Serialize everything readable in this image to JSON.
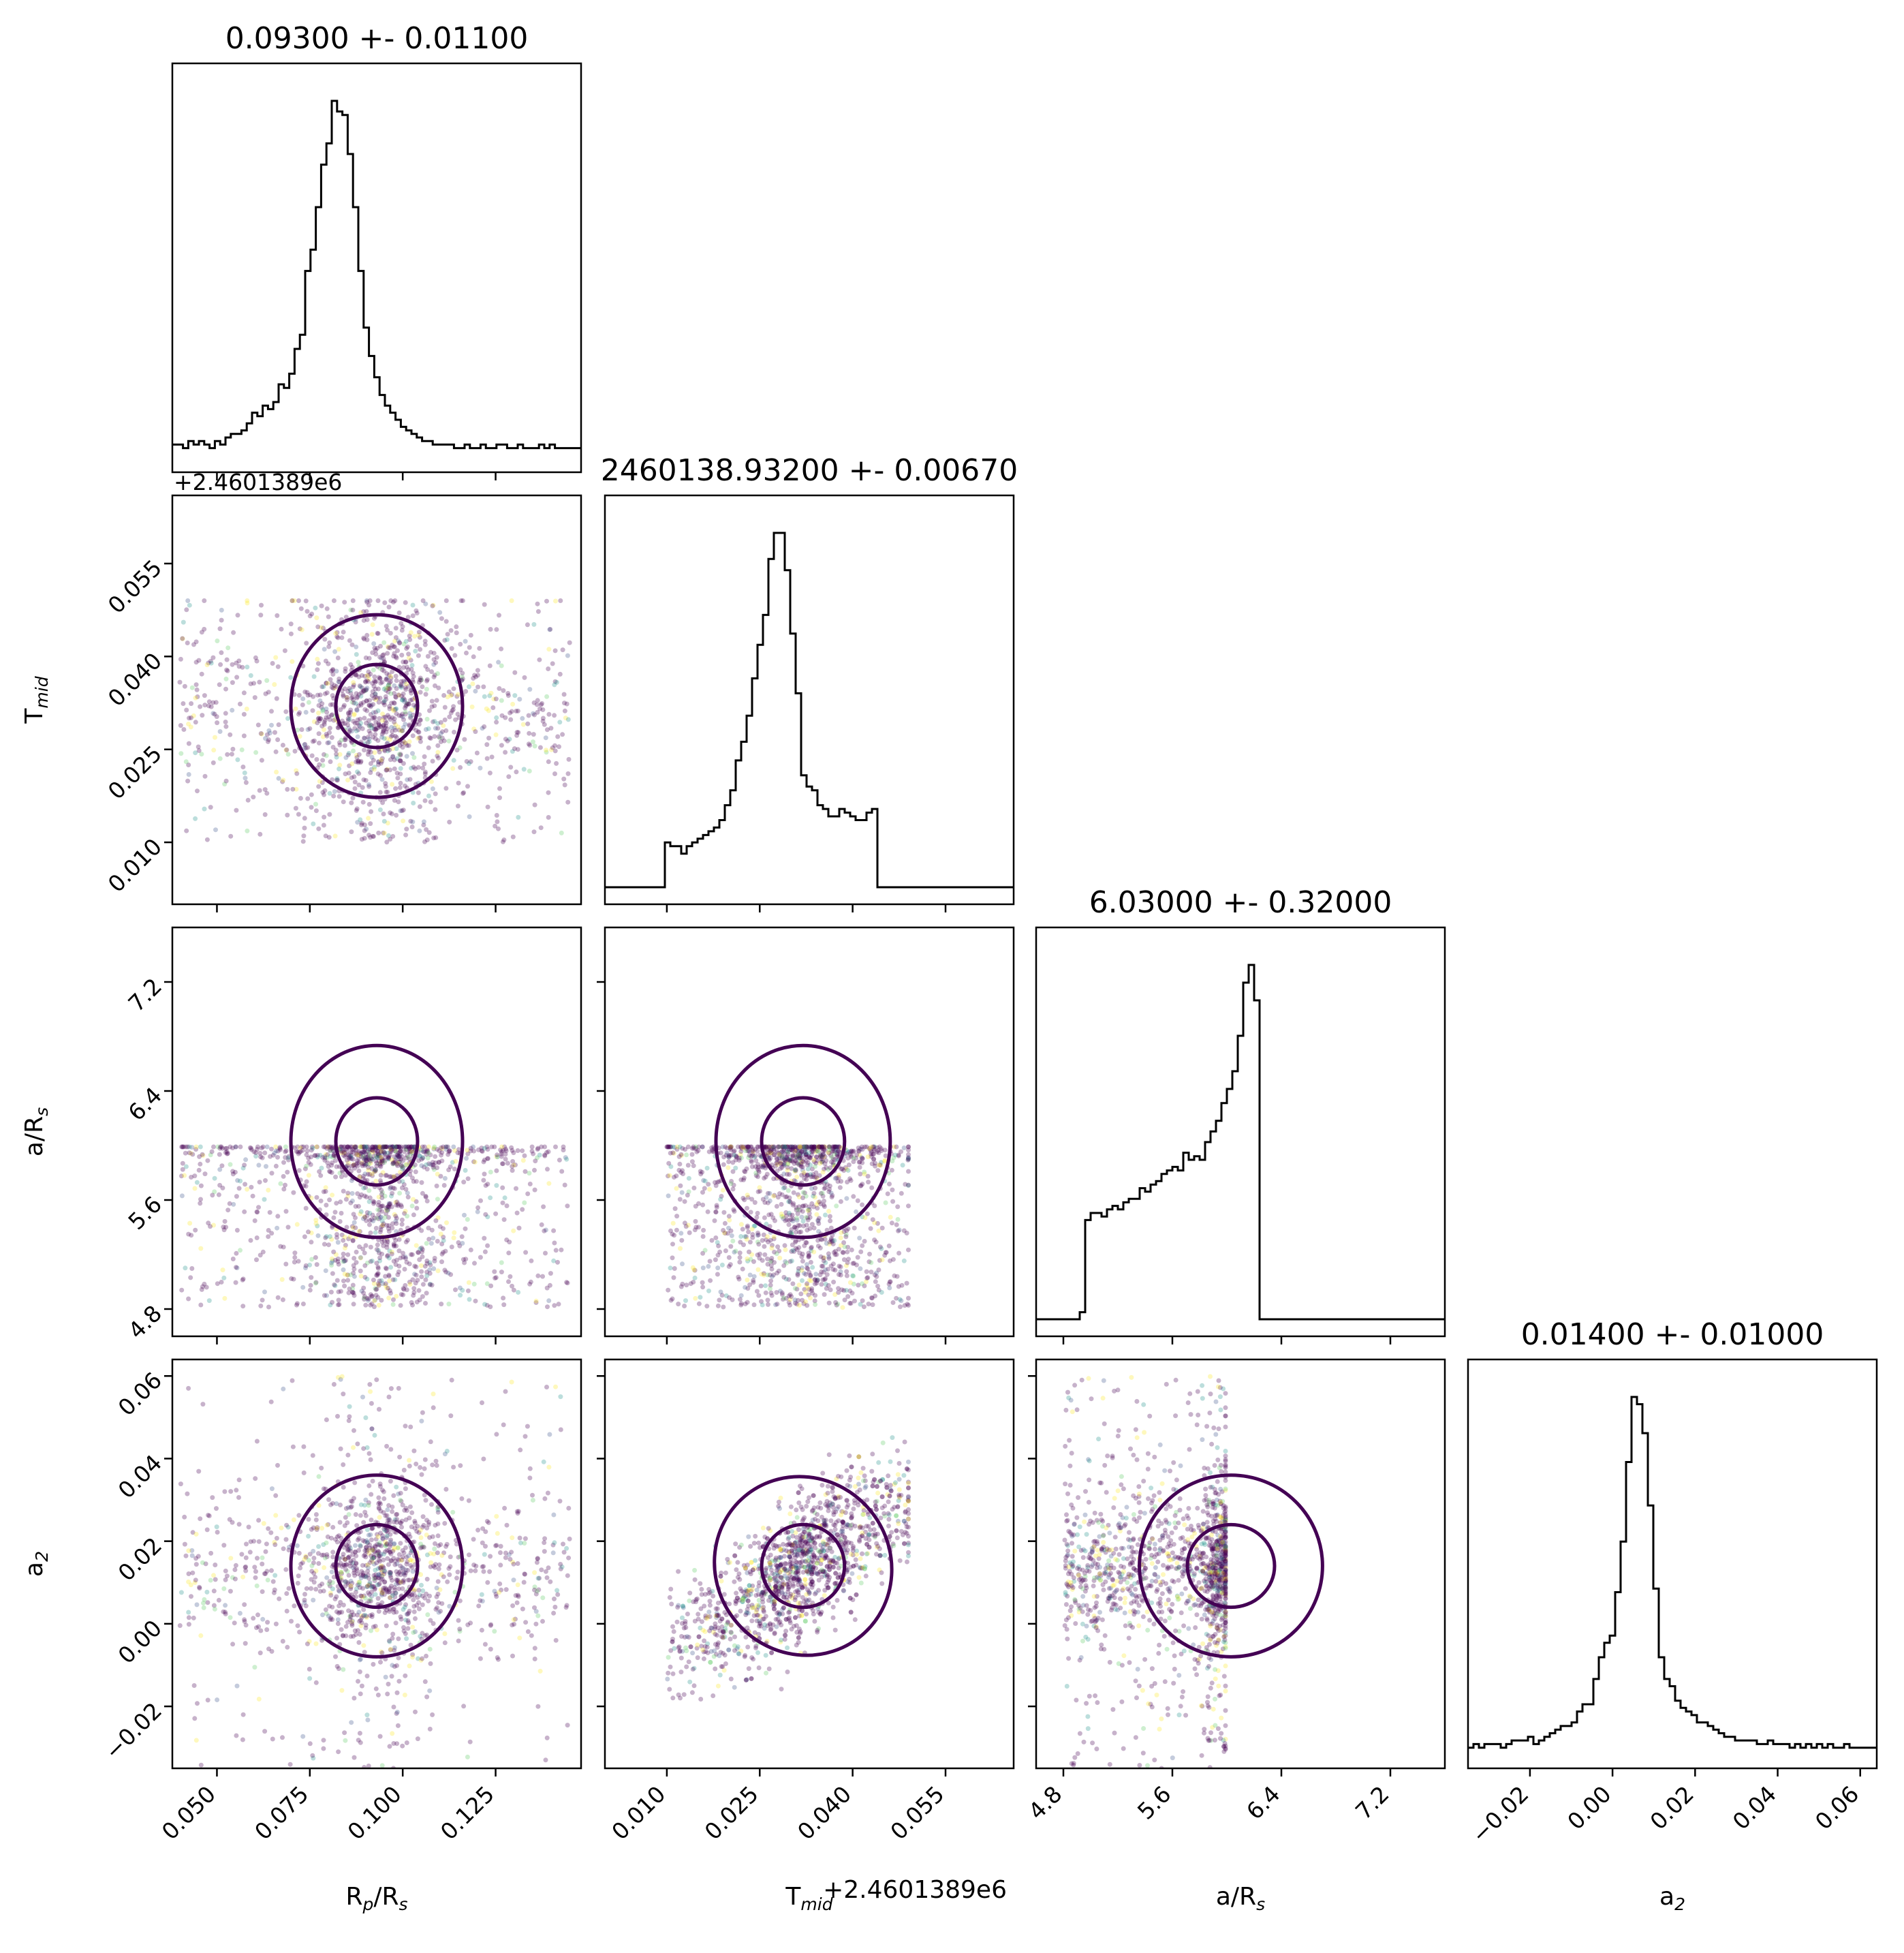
{
  "chart_data": {
    "type": "scatter",
    "subtype": "corner-plot",
    "parameters": [
      {
        "key": "rp",
        "label": "R",
        "sub": "p",
        "label_tail": "/R",
        "sub2": "s",
        "range": [
          0.038,
          0.148
        ],
        "ticks": [
          0.05,
          0.075,
          0.1,
          0.125
        ],
        "tick_labels": [
          "0.050",
          "0.075",
          "0.100",
          "0.125"
        ],
        "title": "0.09300 +- 0.01100",
        "median": 0.093,
        "sigma": 0.011,
        "offset": ""
      },
      {
        "key": "tmid",
        "label": "T",
        "sub": "mid",
        "label_tail": "",
        "sub2": "",
        "range": [
          0.0,
          0.066
        ],
        "ticks": [
          0.01,
          0.025,
          0.04,
          0.055
        ],
        "tick_labels": [
          "0.010",
          "0.025",
          "0.040",
          "0.055"
        ],
        "title": "2460138.93200 +- 0.00670",
        "median": 0.032,
        "sigma": 0.0067,
        "offset": "+2.4601389e6"
      },
      {
        "key": "ars",
        "label": "a/R",
        "sub": "s",
        "label_tail": "",
        "sub2": "",
        "range": [
          4.6,
          7.6
        ],
        "ticks": [
          4.8,
          5.6,
          6.4,
          7.2
        ],
        "tick_labels": [
          "4.8",
          "5.6",
          "6.4",
          "7.2"
        ],
        "title": "6.03000 +- 0.32000",
        "median": 6.03,
        "sigma": 0.32,
        "offset": ""
      },
      {
        "key": "a2",
        "label": "a",
        "sub": "2",
        "label_tail": "",
        "sub2": "",
        "range": [
          -0.035,
          0.064
        ],
        "ticks": [
          -0.02,
          0.0,
          0.02,
          0.04,
          0.06
        ],
        "tick_labels": [
          "−0.02",
          "0.00",
          "0.02",
          "0.04",
          "0.06"
        ],
        "title": "0.01400 +- 0.01000",
        "median": 0.014,
        "sigma": 0.01,
        "offset": ""
      }
    ],
    "histograms": {
      "rp": {
        "bin_start": 0.038,
        "bin_width": 0.00143,
        "counts": [
          3,
          3,
          2,
          4,
          3,
          4,
          3,
          2,
          4,
          3,
          5,
          6,
          6,
          7,
          9,
          12,
          11,
          14,
          13,
          15,
          20,
          19,
          23,
          30,
          34,
          52,
          58,
          70,
          82,
          88,
          100,
          97,
          96,
          85,
          70,
          52,
          36,
          28,
          22,
          17,
          14,
          12,
          10,
          8,
          7,
          6,
          5,
          4,
          4,
          3,
          3,
          3,
          3,
          2,
          2,
          3,
          2,
          2,
          3,
          2,
          2,
          3,
          3,
          2,
          2,
          3,
          2,
          2,
          2,
          3,
          2,
          3,
          2,
          2,
          2,
          2,
          2
        ]
      },
      "tmid": {
        "bin_start": 0.0,
        "bin_width": 0.00088,
        "counts": [
          0,
          0,
          0,
          0,
          0,
          0,
          0,
          0,
          0,
          0,
          0,
          12,
          11,
          11,
          9,
          11,
          12,
          13,
          14,
          15,
          16,
          18,
          22,
          26,
          34,
          39,
          46,
          56,
          65,
          73,
          88,
          95,
          95,
          85,
          68,
          52,
          30,
          27,
          26,
          22,
          21,
          19,
          19,
          21,
          20,
          19,
          18,
          18,
          20,
          21,
          0,
          0,
          0,
          0,
          0,
          0,
          0,
          0,
          0,
          0,
          0,
          0,
          0,
          0,
          0,
          0,
          0,
          0,
          0,
          0,
          0,
          0,
          0,
          0,
          0
        ]
      },
      "ars": {
        "bin_start": 4.6,
        "bin_width": 0.04,
        "counts": [
          0,
          0,
          0,
          0,
          0,
          0,
          0,
          0,
          2,
          28,
          30,
          30,
          29,
          31,
          32,
          31,
          33,
          34,
          34,
          37,
          36,
          38,
          39,
          41,
          42,
          43,
          42,
          47,
          45,
          46,
          45,
          50,
          53,
          56,
          61,
          65,
          70,
          80,
          95,
          100,
          90,
          0,
          0,
          0,
          0,
          0,
          0,
          0,
          0,
          0,
          0,
          0,
          0,
          0,
          0,
          0,
          0,
          0,
          0,
          0,
          0,
          0,
          0,
          0,
          0,
          0,
          0,
          0,
          0,
          0,
          0,
          0,
          0,
          0,
          0
        ]
      },
      "a2": {
        "bin_start": -0.035,
        "bin_width": 0.00132,
        "counts": [
          1,
          2,
          1,
          2,
          2,
          2,
          1,
          2,
          3,
          3,
          3,
          4,
          2,
          3,
          4,
          5,
          6,
          7,
          7,
          8,
          11,
          13,
          13,
          20,
          26,
          30,
          32,
          44,
          58,
          80,
          98,
          96,
          88,
          68,
          45,
          26,
          20,
          18,
          14,
          12,
          11,
          10,
          8,
          8,
          7,
          6,
          5,
          4,
          4,
          3,
          3,
          3,
          3,
          2,
          2,
          3,
          2,
          2,
          2,
          1,
          2,
          1,
          2,
          1,
          2,
          1,
          2,
          1,
          1,
          2,
          1,
          1,
          1,
          1,
          1
        ]
      }
    },
    "scatter_colormap": "viridis",
    "contour_color": "#440154",
    "marginal_color": "#000000"
  }
}
